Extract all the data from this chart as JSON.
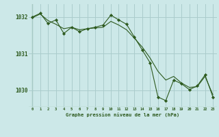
{
  "title": "Graphe pression niveau de la mer (hPa)",
  "bg_color": "#cce8e8",
  "grid_color": "#aacccc",
  "line_color": "#2d5a1e",
  "xlim": [
    -0.5,
    23.5
  ],
  "ylim": [
    1029.55,
    1032.35
  ],
  "yticks": [
    1030,
    1031,
    1032
  ],
  "xticks": [
    0,
    1,
    2,
    3,
    4,
    5,
    6,
    7,
    8,
    9,
    10,
    11,
    12,
    13,
    14,
    15,
    16,
    17,
    18,
    19,
    20,
    21,
    22,
    23
  ],
  "series1_x": [
    0,
    1,
    2,
    3,
    4,
    5,
    6,
    7,
    8,
    9,
    10,
    11,
    12,
    13,
    14,
    15,
    16,
    17,
    18,
    19,
    20,
    21,
    22,
    23
  ],
  "series1_y": [
    1032.0,
    1032.1,
    1031.82,
    1031.92,
    1031.55,
    1031.72,
    1031.6,
    1031.68,
    1031.72,
    1031.78,
    1032.05,
    1031.92,
    1031.8,
    1031.45,
    1031.1,
    1030.75,
    1029.82,
    1029.72,
    1030.28,
    1030.18,
    1030.02,
    1030.12,
    1030.42,
    1029.82
  ],
  "series2_x": [
    0,
    1,
    2,
    3,
    4,
    5,
    6,
    7,
    8,
    9,
    10,
    11,
    12,
    13,
    14,
    15,
    16,
    17,
    18,
    19,
    20,
    21,
    22,
    23
  ],
  "series2_y": [
    1031.98,
    1032.08,
    1031.9,
    1031.8,
    1031.68,
    1031.72,
    1031.65,
    1031.68,
    1031.7,
    1031.72,
    1031.88,
    1031.78,
    1031.65,
    1031.42,
    1031.18,
    1030.88,
    1030.52,
    1030.28,
    1030.38,
    1030.2,
    1030.08,
    1030.1,
    1030.38,
    1029.88
  ]
}
